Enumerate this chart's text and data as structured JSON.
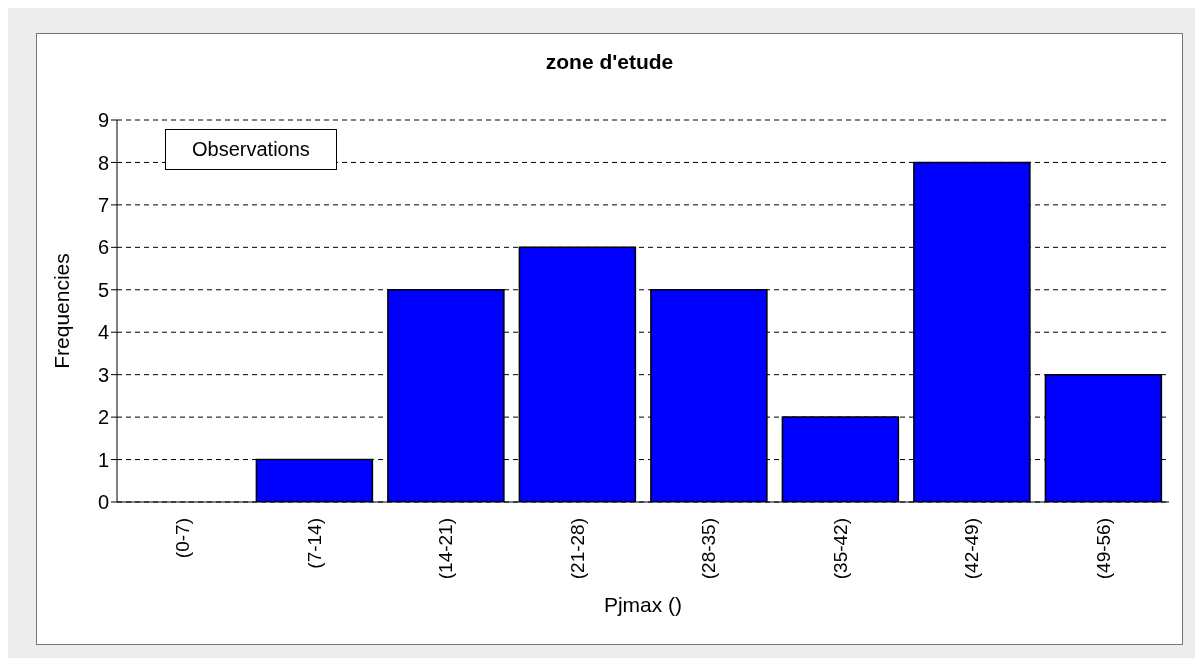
{
  "chart_data": {
    "type": "bar",
    "title": "zone d'etude",
    "xlabel": "Pjmax ()",
    "ylabel": "Frequencies",
    "categories": [
      "(0-7)",
      "(7-14)",
      "(14-21)",
      "(21-28)",
      "(28-35)",
      "(35-42)",
      "(42-49)",
      "(49-56)"
    ],
    "series": [
      {
        "name": "Observations",
        "color": "#0000ff",
        "values": [
          0,
          1,
          5,
          6,
          5,
          2,
          8,
          3
        ]
      }
    ],
    "ylim": [
      0,
      9
    ],
    "yticks": [
      0,
      1,
      2,
      3,
      4,
      5,
      6,
      7,
      8,
      9
    ],
    "grid": "y",
    "legend": "top left"
  }
}
